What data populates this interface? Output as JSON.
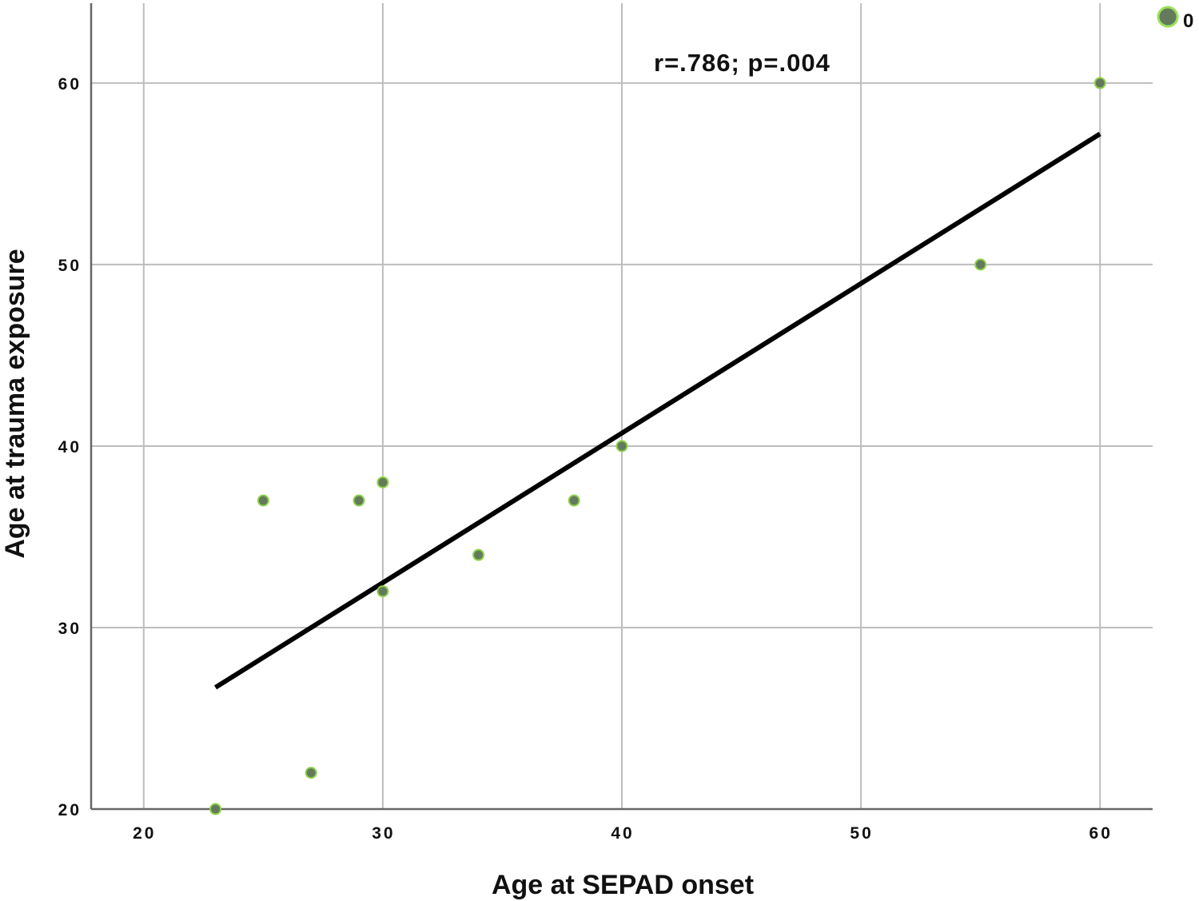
{
  "chart_data": {
    "type": "scatter",
    "title": "",
    "xlabel": "Age at SEPAD onset",
    "ylabel": "Age at trauma exposure",
    "xlim": [
      17.8,
      62.2
    ],
    "ylim": [
      20,
      64.4
    ],
    "x_ticks": [
      20,
      30,
      40,
      50,
      60
    ],
    "y_ticks": [
      20,
      30,
      40,
      50,
      60
    ],
    "grid": true,
    "legend": {
      "position": "top-right",
      "entries": [
        {
          "label": "0",
          "color": "#637a5b"
        }
      ]
    },
    "annotation": "r=.786; p=.004",
    "series": [
      {
        "name": "0",
        "marker_color": "#637a5b",
        "marker_edge": "#8fd24a",
        "points": [
          {
            "x": 23,
            "y": 20
          },
          {
            "x": 25,
            "y": 37
          },
          {
            "x": 27,
            "y": 22
          },
          {
            "x": 29,
            "y": 37
          },
          {
            "x": 30,
            "y": 38
          },
          {
            "x": 30,
            "y": 32
          },
          {
            "x": 34,
            "y": 34
          },
          {
            "x": 38,
            "y": 37
          },
          {
            "x": 40,
            "y": 40
          },
          {
            "x": 55,
            "y": 50
          },
          {
            "x": 60,
            "y": 60
          }
        ]
      }
    ],
    "fit_line": {
      "type": "linear",
      "x0": 23,
      "y0": 26.7,
      "x1": 60,
      "y1": 57.2,
      "color": "#000000"
    }
  },
  "labels": {
    "annotation": "r=.786; p=.004",
    "xlabel": "Age at SEPAD onset",
    "ylabel": "Age at trauma exposure",
    "legend": "0"
  }
}
